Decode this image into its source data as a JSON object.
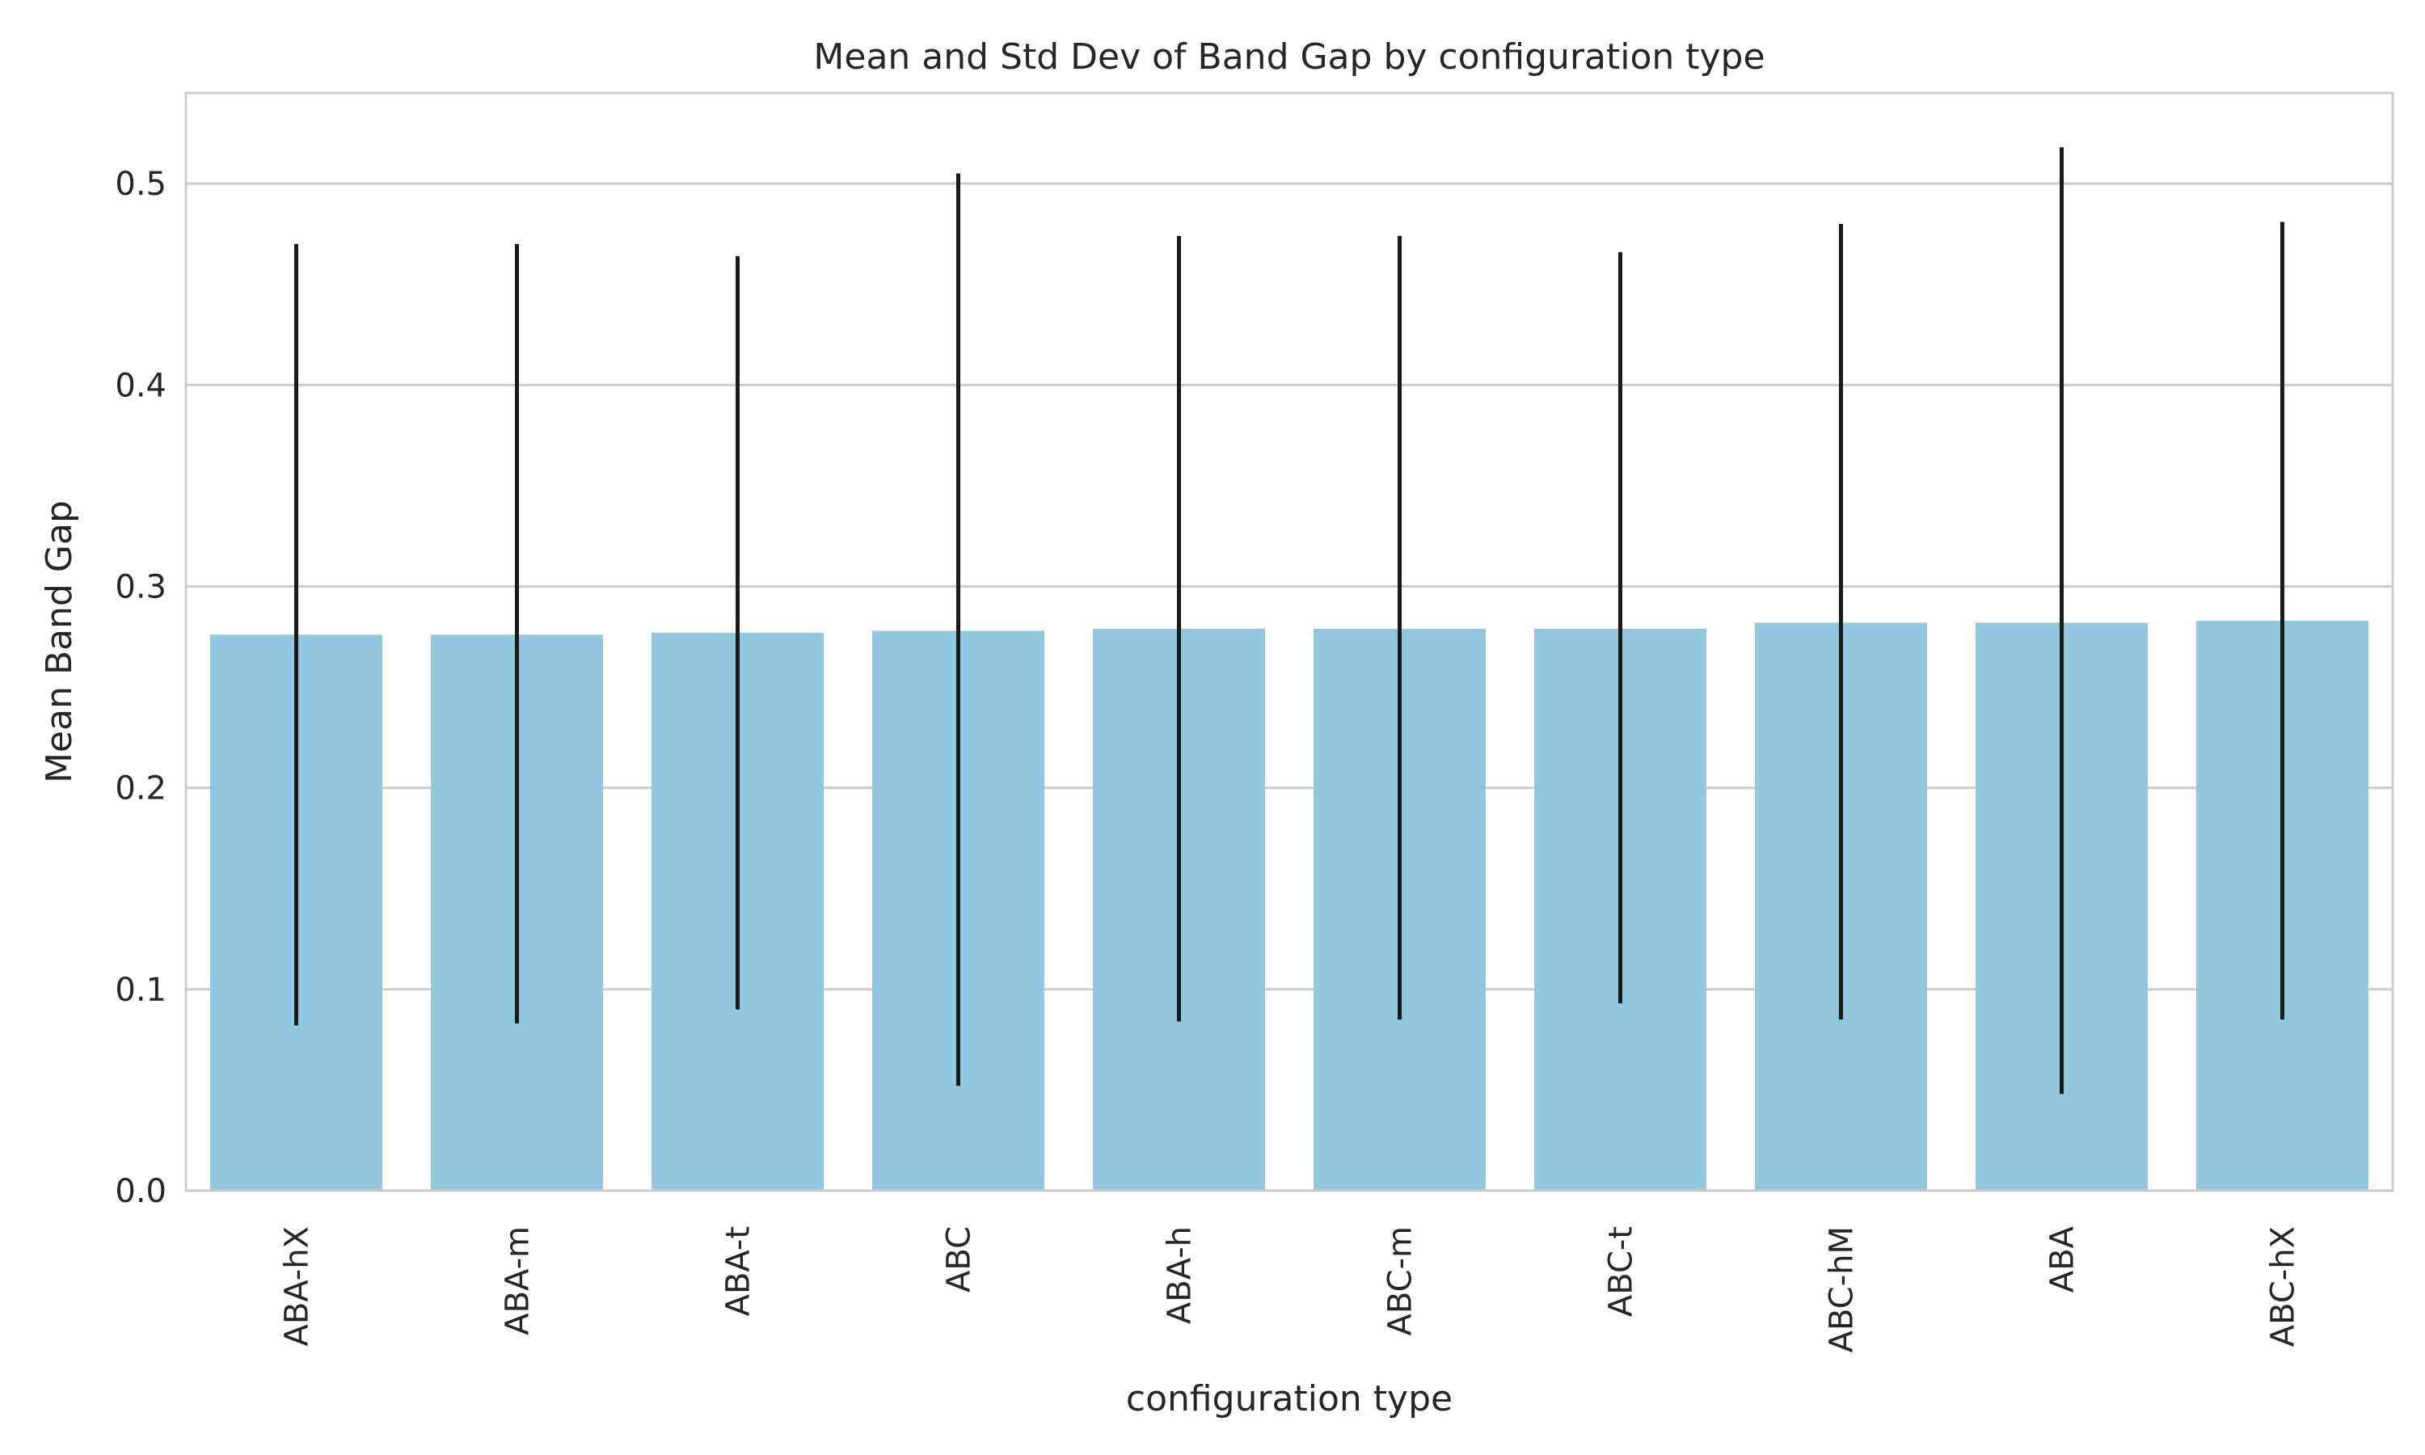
{
  "chart_data": {
    "type": "bar",
    "title": "Mean and Std Dev of Band Gap by configuration type",
    "xlabel": "configuration type",
    "ylabel": "Mean Band Gap",
    "ylim": [
      0,
      0.545
    ],
    "yticks": [
      0.0,
      0.1,
      0.2,
      0.3,
      0.4,
      0.5
    ],
    "ytick_labels": [
      "0.0",
      "0.1",
      "0.2",
      "0.3",
      "0.4",
      "0.5"
    ],
    "grid": true,
    "categories": [
      "ABA-hX",
      "ABA-m",
      "ABA-t",
      "ABC",
      "ABA-h",
      "ABC-m",
      "ABC-t",
      "ABC-hM",
      "ABA",
      "ABC-hX"
    ],
    "values": [
      0.276,
      0.276,
      0.277,
      0.278,
      0.279,
      0.279,
      0.279,
      0.282,
      0.282,
      0.283
    ],
    "error_low": [
      0.082,
      0.083,
      0.09,
      0.052,
      0.084,
      0.085,
      0.093,
      0.085,
      0.048,
      0.085
    ],
    "error_high": [
      0.47,
      0.47,
      0.464,
      0.505,
      0.474,
      0.474,
      0.466,
      0.48,
      0.518,
      0.481
    ],
    "colors": {
      "bar": "#92c8df",
      "error": "#1a1a1a",
      "grid": "#cccccc",
      "spine": "#cccccc",
      "text": "#262626"
    }
  }
}
